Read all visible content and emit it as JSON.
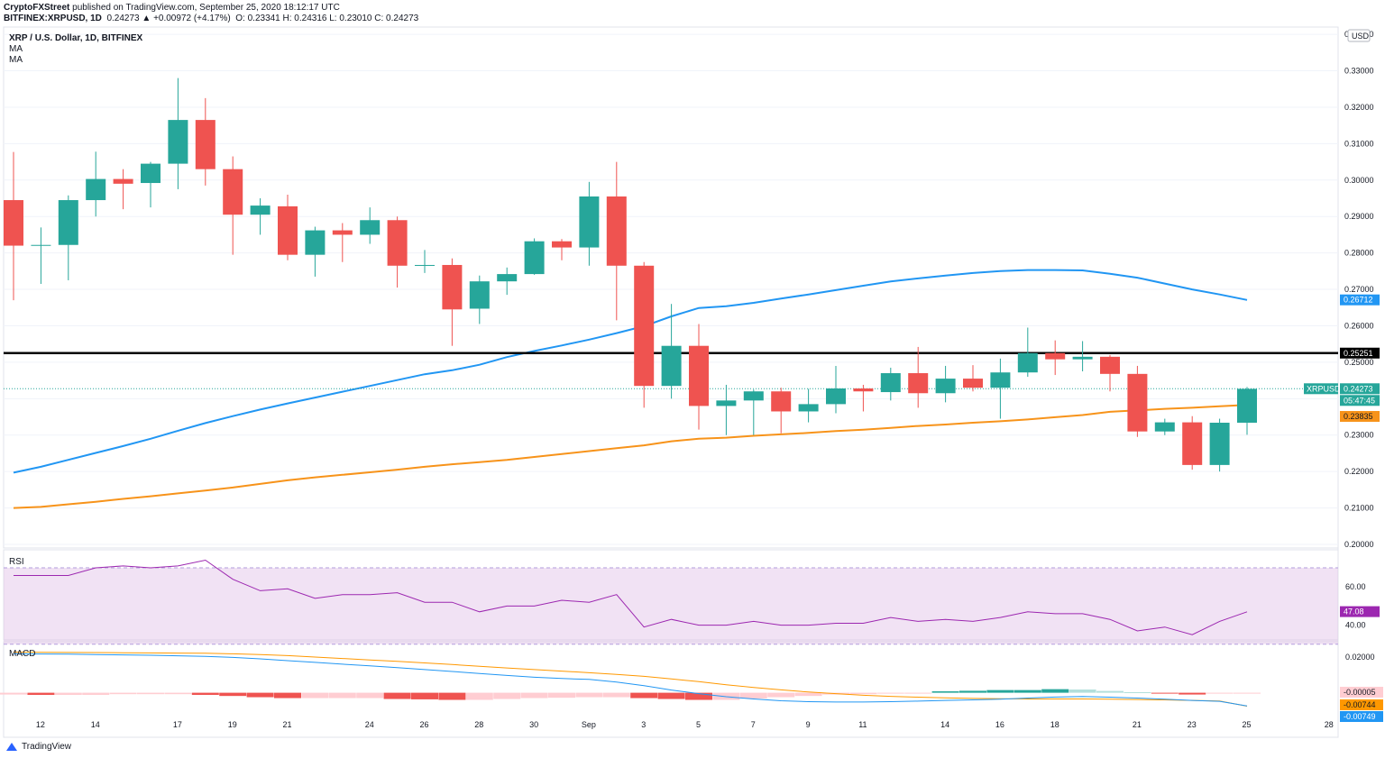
{
  "header": {
    "publisher": "CryptoFXStreet",
    "published_line": " published on TradingView.com, September 25, 2020 18:12:17 UTC",
    "symbol": "BITFINEX:XRPUSD, 1D",
    "change": "0.24273 ▲ +0.00972 (+4.17%)",
    "ohlc": "O: 0.23341  H: 0.24316  L: 0.23010  C: 0.24273"
  },
  "legend": {
    "title": "XRP / U.S. Dollar, 1D, BITFINEX",
    "ma1": "MA",
    "ma2": "MA"
  },
  "currency_badge": "USD",
  "price_axis_labels": [
    "0.34000",
    "0.33000",
    "0.32000",
    "0.31000",
    "0.30000",
    "0.29000",
    "0.28000",
    "0.27000",
    "0.26000",
    "0.25000",
    "0.24000",
    "0.23000",
    "0.22000",
    "0.21000",
    "0.20000"
  ],
  "tags": {
    "ma_blue": "0.26712",
    "hline": "0.25251",
    "symbol": "XRPUSD",
    "price": "0.24273",
    "countdown": "05:47:45",
    "ma_orange": "0.23835",
    "rsi": "47.08",
    "macd_a": "-0.00005",
    "macd_b": "-0.00744",
    "macd_c": "-0.00749"
  },
  "rsi": {
    "title": "RSI",
    "axis_labels": [
      "60.00",
      "40.00"
    ]
  },
  "macd": {
    "title": "MACD",
    "axis_labels": [
      "0.02000",
      "0.00000"
    ]
  },
  "x_axis_labels": [
    "12",
    "14",
    "17",
    "19",
    "21",
    "24",
    "26",
    "28",
    "30",
    "Sep",
    "3",
    "5",
    "7",
    "9",
    "11",
    "14",
    "16",
    "18",
    "21",
    "23",
    "25",
    "28"
  ],
  "footer": {
    "brand": "TradingView"
  },
  "colors": {
    "up": "#26a69a",
    "down": "#ef5350",
    "ma_blue": "#2196f3",
    "ma_orange": "#f7931a",
    "rsi": "#9c27b0",
    "hline": "#000000"
  },
  "chart_data": {
    "type": "candlestick",
    "title": "XRP / U.S. Dollar, 1D, BITFINEX",
    "ylim": [
      0.195,
      0.343
    ],
    "hline": 0.25251,
    "current_price": 0.24273,
    "candles": [
      {
        "x": "Aug 11",
        "o": 0.2945,
        "h": 0.3077,
        "l": 0.267,
        "c": 0.282
      },
      {
        "x": "Aug 12",
        "o": 0.282,
        "h": 0.287,
        "l": 0.2715,
        "c": 0.2822
      },
      {
        "x": "Aug 13",
        "o": 0.2822,
        "h": 0.2958,
        "l": 0.2725,
        "c": 0.2945
      },
      {
        "x": "Aug 14",
        "o": 0.2945,
        "h": 0.3078,
        "l": 0.29,
        "c": 0.3003
      },
      {
        "x": "Aug 15",
        "o": 0.3003,
        "h": 0.303,
        "l": 0.292,
        "c": 0.299
      },
      {
        "x": "Aug 16",
        "o": 0.2992,
        "h": 0.305,
        "l": 0.2925,
        "c": 0.3045
      },
      {
        "x": "Aug 17",
        "o": 0.3045,
        "h": 0.328,
        "l": 0.2975,
        "c": 0.3165
      },
      {
        "x": "Aug 18",
        "o": 0.3165,
        "h": 0.3225,
        "l": 0.2985,
        "c": 0.303
      },
      {
        "x": "Aug 19",
        "o": 0.303,
        "h": 0.3065,
        "l": 0.2795,
        "c": 0.2905
      },
      {
        "x": "Aug 20",
        "o": 0.2905,
        "h": 0.295,
        "l": 0.285,
        "c": 0.293
      },
      {
        "x": "Aug 21",
        "o": 0.2928,
        "h": 0.296,
        "l": 0.278,
        "c": 0.2795
      },
      {
        "x": "Aug 22",
        "o": 0.2795,
        "h": 0.2872,
        "l": 0.2735,
        "c": 0.2862
      },
      {
        "x": "Aug 23",
        "o": 0.2862,
        "h": 0.2882,
        "l": 0.2775,
        "c": 0.285
      },
      {
        "x": "Aug 24",
        "o": 0.285,
        "h": 0.2925,
        "l": 0.2825,
        "c": 0.289
      },
      {
        "x": "Aug 25",
        "o": 0.289,
        "h": 0.29,
        "l": 0.2705,
        "c": 0.2765
      },
      {
        "x": "Aug 26",
        "o": 0.2765,
        "h": 0.2808,
        "l": 0.2745,
        "c": 0.2767
      },
      {
        "x": "Aug 27",
        "o": 0.2767,
        "h": 0.2785,
        "l": 0.2545,
        "c": 0.2645
      },
      {
        "x": "Aug 28",
        "o": 0.2647,
        "h": 0.2738,
        "l": 0.2605,
        "c": 0.2722
      },
      {
        "x": "Aug 29",
        "o": 0.2722,
        "h": 0.276,
        "l": 0.2685,
        "c": 0.2742
      },
      {
        "x": "Aug 30",
        "o": 0.2742,
        "h": 0.284,
        "l": 0.274,
        "c": 0.2832
      },
      {
        "x": "Aug 31",
        "o": 0.2832,
        "h": 0.2838,
        "l": 0.278,
        "c": 0.2815
      },
      {
        "x": "Sep 1",
        "o": 0.2815,
        "h": 0.2995,
        "l": 0.2765,
        "c": 0.2955
      },
      {
        "x": "Sep 2",
        "o": 0.2955,
        "h": 0.305,
        "l": 0.2615,
        "c": 0.2765
      },
      {
        "x": "Sep 3",
        "o": 0.2765,
        "h": 0.2775,
        "l": 0.2375,
        "c": 0.2435
      },
      {
        "x": "Sep 4",
        "o": 0.2435,
        "h": 0.266,
        "l": 0.24,
        "c": 0.2545
      },
      {
        "x": "Sep 5",
        "o": 0.2545,
        "h": 0.2605,
        "l": 0.2315,
        "c": 0.238
      },
      {
        "x": "Sep 6",
        "o": 0.238,
        "h": 0.2438,
        "l": 0.23,
        "c": 0.2395
      },
      {
        "x": "Sep 7",
        "o": 0.2395,
        "h": 0.2425,
        "l": 0.23,
        "c": 0.242
      },
      {
        "x": "Sep 8",
        "o": 0.242,
        "h": 0.243,
        "l": 0.2305,
        "c": 0.2365
      },
      {
        "x": "Sep 9",
        "o": 0.2365,
        "h": 0.2427,
        "l": 0.2335,
        "c": 0.2385
      },
      {
        "x": "Sep 10",
        "o": 0.2385,
        "h": 0.249,
        "l": 0.236,
        "c": 0.2428
      },
      {
        "x": "Sep 11",
        "o": 0.2428,
        "h": 0.2438,
        "l": 0.2365,
        "c": 0.242
      },
      {
        "x": "Sep 12",
        "o": 0.2418,
        "h": 0.2485,
        "l": 0.2395,
        "c": 0.247
      },
      {
        "x": "Sep 13",
        "o": 0.247,
        "h": 0.2542,
        "l": 0.2375,
        "c": 0.2415
      },
      {
        "x": "Sep 14",
        "o": 0.2415,
        "h": 0.249,
        "l": 0.239,
        "c": 0.2455
      },
      {
        "x": "Sep 15",
        "o": 0.2455,
        "h": 0.2492,
        "l": 0.242,
        "c": 0.243
      },
      {
        "x": "Sep 16",
        "o": 0.243,
        "h": 0.251,
        "l": 0.2345,
        "c": 0.2472
      },
      {
        "x": "Sep 17",
        "o": 0.2472,
        "h": 0.2595,
        "l": 0.246,
        "c": 0.2525
      },
      {
        "x": "Sep 18",
        "o": 0.2525,
        "h": 0.256,
        "l": 0.2465,
        "c": 0.2508
      },
      {
        "x": "Sep 19",
        "o": 0.2508,
        "h": 0.2558,
        "l": 0.2475,
        "c": 0.2515
      },
      {
        "x": "Sep 20",
        "o": 0.2515,
        "h": 0.252,
        "l": 0.242,
        "c": 0.2468
      },
      {
        "x": "Sep 21",
        "o": 0.2468,
        "h": 0.249,
        "l": 0.2295,
        "c": 0.231
      },
      {
        "x": "Sep 22",
        "o": 0.231,
        "h": 0.2345,
        "l": 0.23,
        "c": 0.2335
      },
      {
        "x": "Sep 23",
        "o": 0.2335,
        "h": 0.2352,
        "l": 0.2205,
        "c": 0.2218
      },
      {
        "x": "Sep 24",
        "o": 0.2218,
        "h": 0.2345,
        "l": 0.22,
        "c": 0.2334
      },
      {
        "x": "Sep 25",
        "o": 0.2334,
        "h": 0.2432,
        "l": 0.2301,
        "c": 0.2427
      }
    ],
    "ma_blue": [
      0.2197,
      0.2213,
      0.2232,
      0.2251,
      0.227,
      0.229,
      0.2312,
      0.2333,
      0.2352,
      0.237,
      0.2387,
      0.2403,
      0.2419,
      0.2435,
      0.2451,
      0.2467,
      0.2478,
      0.2493,
      0.2514,
      0.2531,
      0.2546,
      0.2562,
      0.258,
      0.2599,
      0.2626,
      0.2649,
      0.2654,
      0.2663,
      0.2675,
      0.2686,
      0.2698,
      0.271,
      0.2722,
      0.273,
      0.2738,
      0.2745,
      0.275,
      0.2753,
      0.2753,
      0.2752,
      0.2743,
      0.2732,
      0.2716,
      0.27,
      0.2686,
      0.2671
    ],
    "ma_orange": [
      0.21,
      0.2103,
      0.211,
      0.2117,
      0.2125,
      0.2132,
      0.214,
      0.2148,
      0.2156,
      0.2166,
      0.2176,
      0.2184,
      0.2191,
      0.2198,
      0.2205,
      0.2213,
      0.222,
      0.2226,
      0.2232,
      0.224,
      0.2248,
      0.2256,
      0.2264,
      0.2272,
      0.2283,
      0.229,
      0.2293,
      0.2298,
      0.2302,
      0.2306,
      0.2311,
      0.2315,
      0.232,
      0.2325,
      0.2329,
      0.2334,
      0.2338,
      0.2343,
      0.2349,
      0.2355,
      0.2364,
      0.2368,
      0.2372,
      0.2375,
      0.2379,
      0.2383
    ],
    "rsi_values": [
      66,
      66,
      66,
      70,
      71,
      70,
      71,
      74,
      64,
      58,
      59,
      54,
      56,
      56,
      57,
      52,
      52,
      47,
      50,
      50,
      53,
      52,
      56,
      39,
      43,
      40,
      40,
      42,
      40,
      40,
      41,
      41,
      44,
      42,
      43,
      42,
      44,
      47,
      46,
      46,
      43,
      37,
      39,
      35,
      42,
      47
    ],
    "macd_line": [
      0.0218,
      0.0217,
      0.0216,
      0.0214,
      0.0212,
      0.021,
      0.0207,
      0.0204,
      0.0198,
      0.019,
      0.018,
      0.017,
      0.016,
      0.0151,
      0.0141,
      0.013,
      0.0119,
      0.0108,
      0.0097,
      0.0087,
      0.008,
      0.0075,
      0.006,
      0.004,
      0.0015,
      -0.0005,
      -0.0022,
      -0.0035,
      -0.0045,
      -0.005,
      -0.0052,
      -0.0052,
      -0.005,
      -0.0047,
      -0.0043,
      -0.004,
      -0.0036,
      -0.003,
      -0.0024,
      -0.0021,
      -0.0025,
      -0.003,
      -0.0036,
      -0.0043,
      -0.0048,
      -0.0074
    ],
    "macd_signal": [
      0.0228,
      0.0227,
      0.0226,
      0.0225,
      0.0224,
      0.0223,
      0.0222,
      0.0221,
      0.0218,
      0.0214,
      0.0208,
      0.02,
      0.0192,
      0.0184,
      0.0176,
      0.0167,
      0.0158,
      0.0148,
      0.0139,
      0.013,
      0.0121,
      0.0112,
      0.0103,
      0.0092,
      0.0078,
      0.0062,
      0.0045,
      0.003,
      0.0016,
      0.0004,
      -0.0005,
      -0.0014,
      -0.002,
      -0.0025,
      -0.0029,
      -0.0032,
      -0.0034,
      -0.0035,
      -0.0035,
      -0.0035,
      -0.0036,
      -0.0038,
      -0.004,
      -0.0043,
      -0.0046,
      -0.0075
    ],
    "macd_hist": [
      -0.001,
      -0.0012,
      -0.0012,
      -0.0012,
      -0.0008,
      -0.0008,
      -0.0008,
      -0.0012,
      -0.0018,
      -0.0025,
      -0.003,
      -0.003,
      -0.003,
      -0.003,
      -0.0035,
      -0.0037,
      -0.004,
      -0.004,
      -0.0035,
      -0.003,
      -0.0028,
      -0.0025,
      -0.0025,
      -0.003,
      -0.0035,
      -0.004,
      -0.004,
      -0.0032,
      -0.0025,
      -0.0018,
      -0.001,
      -0.0008,
      -0.0005,
      -0.0004,
      0.0008,
      0.0011,
      0.0015,
      0.0015,
      0.002,
      0.0018,
      0.001,
      0.0003,
      -0.0003,
      -0.001,
      -0.0005,
      -0.0005
    ]
  }
}
